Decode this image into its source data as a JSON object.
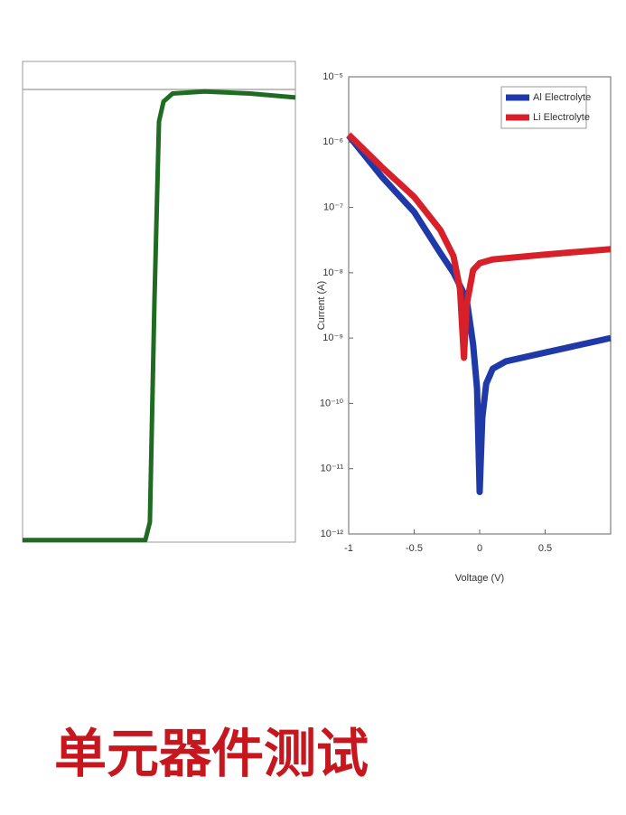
{
  "chart_data": [
    {
      "type": "line",
      "series": [
        {
          "color": "#1f6b22",
          "x": [
            0,
            1,
            2,
            2.7,
            2.8,
            2.9,
            3.0,
            3.1,
            3.3,
            4,
            5,
            6
          ],
          "values": [
            0.005,
            0.005,
            0.005,
            0.005,
            0.05,
            0.6,
            1.05,
            1.1,
            1.12,
            1.125,
            1.12,
            1.11
          ]
        }
      ],
      "xlim": [
        0,
        6
      ],
      "ylim": [
        0,
        1.2
      ],
      "reference_line": 1.13
    },
    {
      "type": "line",
      "log_y": true,
      "xlabel": "Voltage (V)",
      "ylabel": "Current (A)",
      "series": [
        {
          "name": "Al Electrolyte",
          "color": "#1f3aa8",
          "x": [
            -1,
            -0.75,
            -0.5,
            -0.3,
            -0.2,
            -0.1,
            -0.05,
            -0.02,
            0,
            0.02,
            0.05,
            0.1,
            0.2,
            0.5,
            1.0
          ],
          "values": [
            1.26e-06,
            3e-07,
            8.5e-08,
            2e-08,
            1e-08,
            4e-09,
            8e-10,
            1.7e-10,
            4.4e-12,
            6e-11,
            2e-10,
            3.4e-10,
            4.4e-10,
            6e-10,
            1e-09
          ]
        },
        {
          "name": "Li Electrolyte",
          "color": "#d8202a",
          "x": [
            -1,
            -0.75,
            -0.5,
            -0.3,
            -0.2,
            -0.15,
            -0.12,
            -0.1,
            -0.05,
            0,
            0.1,
            0.5,
            1.0
          ],
          "values": [
            1.3e-06,
            4.2e-07,
            1.45e-07,
            4.5e-08,
            1.8e-08,
            5.6e-09,
            5e-10,
            3.2e-09,
            1.1e-08,
            1.4e-08,
            1.6e-08,
            1.9e-08,
            2.3e-08
          ]
        }
      ],
      "xlim": [
        -1,
        1
      ],
      "ylim": [
        1e-12,
        1e-05
      ],
      "xticks": [
        -1,
        -0.5,
        0,
        0.5
      ],
      "yticks": [
        {
          "value": 1e-05,
          "label": "10⁻⁵"
        },
        {
          "value": 1e-06,
          "label": "10⁻⁶"
        },
        {
          "value": 1e-07,
          "label": "10⁻⁷"
        },
        {
          "value": 1e-08,
          "label": "10⁻⁸"
        },
        {
          "value": 1e-09,
          "label": "10⁻⁹"
        },
        {
          "value": 1e-10,
          "label": "10⁻¹⁰"
        },
        {
          "value": 1e-11,
          "label": "10⁻¹¹"
        },
        {
          "value": 1e-12,
          "label": "10⁻¹²"
        }
      ],
      "legend": "upper-right"
    }
  ],
  "caption": "单元器件测试"
}
